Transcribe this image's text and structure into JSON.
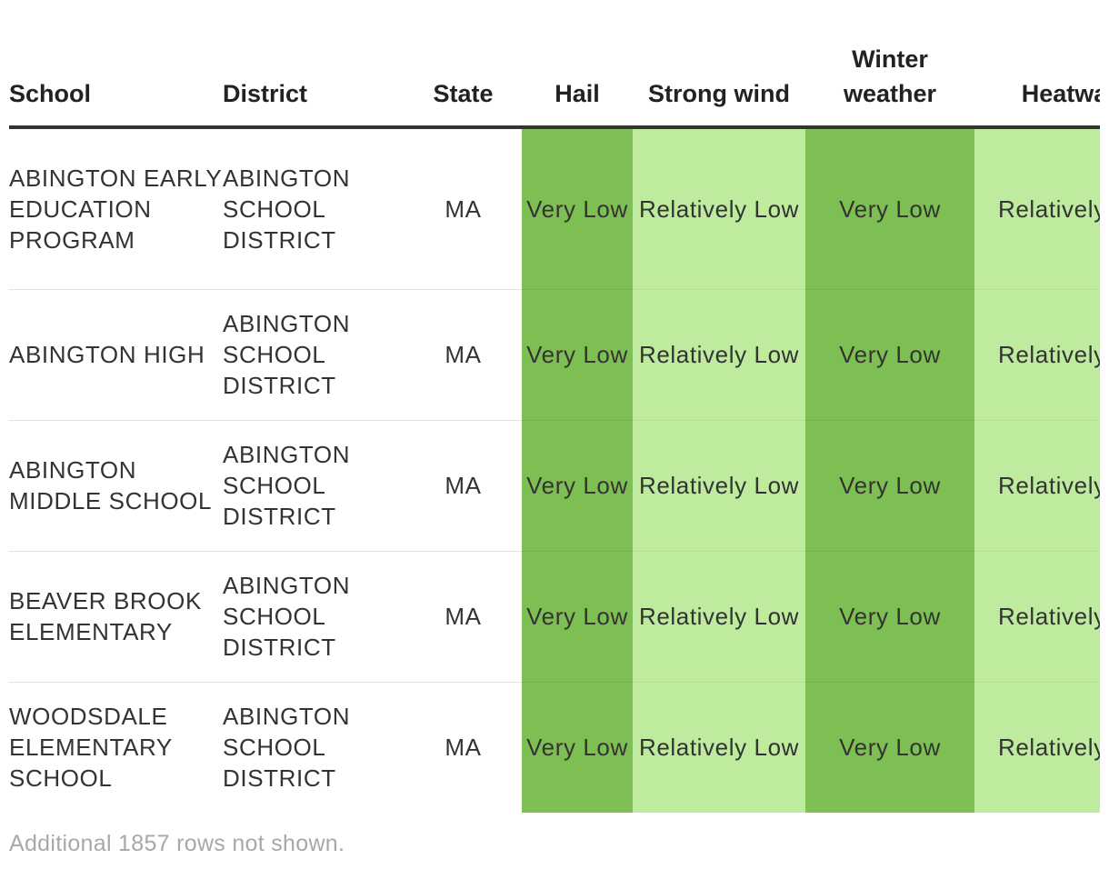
{
  "header": {
    "columns": [
      "School",
      "District",
      "State",
      "Hail",
      "Strong wind",
      "Winter weather",
      "Heatwave"
    ]
  },
  "table": {
    "rows": [
      [
        "ABINGTON EARLY EDUCATION PROGRAM",
        "ABINGTON SCHOOL DISTRICT",
        "MA",
        "Very Low",
        "Relatively Low",
        "Very Low",
        "Relatively Low"
      ],
      [
        "ABINGTON HIGH",
        "ABINGTON SCHOOL DISTRICT",
        "MA",
        "Very Low",
        "Relatively Low",
        "Very Low",
        "Relatively Low"
      ],
      [
        "ABINGTON MIDDLE SCHOOL",
        "ABINGTON SCHOOL DISTRICT",
        "MA",
        "Very Low",
        "Relatively Low",
        "Very Low",
        "Relatively Low"
      ],
      [
        "BEAVER BROOK ELEMENTARY",
        "ABINGTON SCHOOL DISTRICT",
        "MA",
        "Very Low",
        "Relatively Low",
        "Very Low",
        "Relatively Low"
      ],
      [
        "WOODSDALE ELEMENTARY SCHOOL",
        "ABINGTON SCHOOL DISTRICT",
        "MA",
        "Very Low",
        "Relatively Low",
        "Very Low",
        "Relatively Low"
      ]
    ]
  },
  "footer": {
    "note": "Additional 1857 rows not shown."
  }
}
